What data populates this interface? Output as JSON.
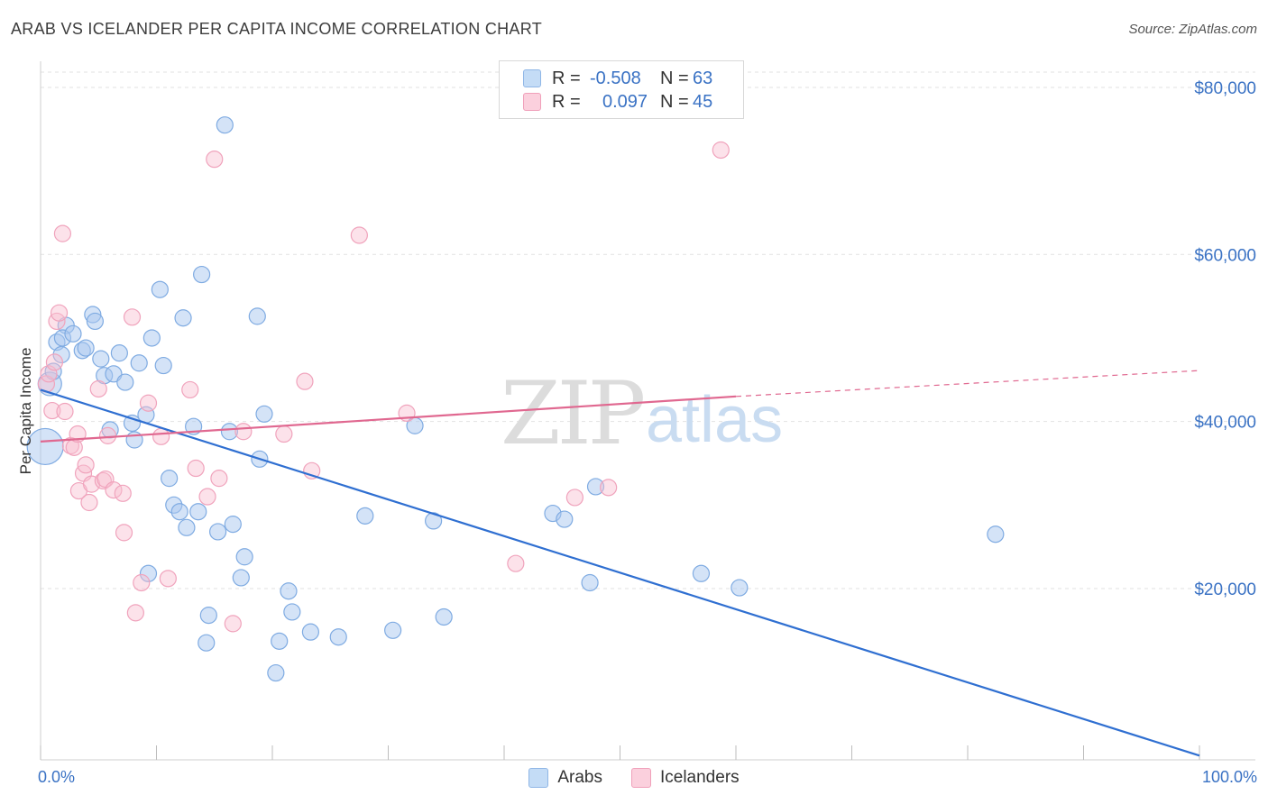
{
  "title": "ARAB VS ICELANDER PER CAPITA INCOME CORRELATION CHART",
  "source": "Source: ZipAtlas.com",
  "legend": {
    "rows": [
      {
        "r_label": "R =",
        "r_value": "-0.508",
        "n_label": "N =",
        "n_value": "63",
        "color": "#a9c9ef"
      },
      {
        "r_label": "R =",
        "r_value": "0.097",
        "n_label": "N =",
        "n_value": "45",
        "color": "#f6b9cc"
      }
    ]
  },
  "bottom_legend": [
    {
      "label": "Arabs",
      "color": "#a9c9ef"
    },
    {
      "label": "Icelanders",
      "color": "#f6b9cc"
    }
  ],
  "watermark": {
    "zip": "ZIP",
    "atlas": "atlas"
  },
  "chart_data": {
    "type": "scatter",
    "xlabel": "",
    "ylabel": "Per Capita Income",
    "x_tick_labels": [
      "0.0%",
      "100.0%"
    ],
    "y_tick_labels": [
      "$20,000",
      "$40,000",
      "$60,000",
      "$80,000"
    ],
    "y_ticks": [
      20000,
      40000,
      60000,
      80000
    ],
    "xlim": [
      0,
      100
    ],
    "ylim": [
      0,
      82000
    ],
    "grid": true,
    "colors": {
      "arabs": "#6aa0e0",
      "arabs_line": "#2f6fd1",
      "icelanders": "#f09ab4",
      "icelanders_line": "#e06890",
      "tick_label": "#3a72c4"
    },
    "series": [
      {
        "name": "Arabs",
        "points": [
          [
            0.4,
            37000
          ],
          [
            0.8,
            44500
          ],
          [
            1.4,
            49500
          ],
          [
            1.8,
            48000
          ],
          [
            2.2,
            51500
          ],
          [
            1.9,
            50000
          ],
          [
            2.8,
            50500
          ],
          [
            3.6,
            48500
          ],
          [
            3.9,
            48800
          ],
          [
            4.5,
            52800
          ],
          [
            4.7,
            52000
          ],
          [
            5.2,
            47500
          ],
          [
            5.5,
            45500
          ],
          [
            6.3,
            45700
          ],
          [
            6.8,
            48200
          ],
          [
            7.3,
            44700
          ],
          [
            7.9,
            39800
          ],
          [
            8.1,
            37800
          ],
          [
            8.5,
            47000
          ],
          [
            9.1,
            40800
          ],
          [
            9.6,
            50000
          ],
          [
            10.3,
            55800
          ],
          [
            10.6,
            46700
          ],
          [
            11.1,
            33200
          ],
          [
            11.5,
            30000
          ],
          [
            12.0,
            29200
          ],
          [
            12.3,
            52400
          ],
          [
            12.6,
            27300
          ],
          [
            13.2,
            39400
          ],
          [
            13.6,
            29200
          ],
          [
            13.9,
            57600
          ],
          [
            14.3,
            13500
          ],
          [
            14.5,
            16800
          ],
          [
            15.3,
            26800
          ],
          [
            15.9,
            75500
          ],
          [
            16.3,
            38800
          ],
          [
            16.6,
            27700
          ],
          [
            17.3,
            21300
          ],
          [
            17.6,
            23800
          ],
          [
            18.7,
            52600
          ],
          [
            18.9,
            35500
          ],
          [
            19.3,
            40900
          ],
          [
            20.6,
            13700
          ],
          [
            20.3,
            9900
          ],
          [
            21.4,
            19700
          ],
          [
            21.7,
            17200
          ],
          [
            23.3,
            14800
          ],
          [
            25.7,
            14200
          ],
          [
            28.0,
            28700
          ],
          [
            30.4,
            15000
          ],
          [
            32.3,
            39500
          ],
          [
            33.9,
            28100
          ],
          [
            34.8,
            16600
          ],
          [
            44.2,
            29000
          ],
          [
            45.2,
            28300
          ],
          [
            47.4,
            20700
          ],
          [
            47.9,
            32200
          ],
          [
            57.0,
            21800
          ],
          [
            60.3,
            20100
          ],
          [
            82.4,
            26500
          ],
          [
            9.3,
            21800
          ],
          [
            1.1,
            46000
          ],
          [
            6.0,
            39000
          ]
        ]
      },
      {
        "name": "Icelanders",
        "points": [
          [
            0.5,
            44500
          ],
          [
            0.7,
            45700
          ],
          [
            1.0,
            41300
          ],
          [
            1.2,
            47100
          ],
          [
            1.4,
            52000
          ],
          [
            1.6,
            53000
          ],
          [
            1.9,
            62500
          ],
          [
            2.1,
            41200
          ],
          [
            2.6,
            37100
          ],
          [
            2.9,
            36900
          ],
          [
            3.2,
            38500
          ],
          [
            3.3,
            31700
          ],
          [
            3.7,
            33800
          ],
          [
            3.9,
            34800
          ],
          [
            4.2,
            30300
          ],
          [
            4.4,
            32500
          ],
          [
            5.0,
            43900
          ],
          [
            5.4,
            32900
          ],
          [
            5.6,
            33100
          ],
          [
            5.8,
            38300
          ],
          [
            6.3,
            31800
          ],
          [
            7.1,
            31400
          ],
          [
            7.2,
            26700
          ],
          [
            7.9,
            52500
          ],
          [
            8.2,
            17100
          ],
          [
            8.7,
            20700
          ],
          [
            9.3,
            42200
          ],
          [
            10.4,
            38200
          ],
          [
            11.0,
            21200
          ],
          [
            12.9,
            43800
          ],
          [
            13.4,
            34400
          ],
          [
            14.4,
            31000
          ],
          [
            15.0,
            71400
          ],
          [
            15.4,
            33200
          ],
          [
            16.6,
            15800
          ],
          [
            17.5,
            38800
          ],
          [
            21.0,
            38500
          ],
          [
            22.8,
            44800
          ],
          [
            23.4,
            34100
          ],
          [
            27.5,
            62300
          ],
          [
            31.6,
            41000
          ],
          [
            41.0,
            23000
          ],
          [
            46.1,
            30900
          ],
          [
            49.0,
            32100
          ],
          [
            58.7,
            72500
          ]
        ]
      }
    ],
    "trend_lines": [
      {
        "name": "Arabs",
        "x": [
          0,
          100
        ],
        "y": [
          43800,
          0
        ]
      },
      {
        "name": "Icelanders",
        "x": [
          0,
          60
        ],
        "y": [
          37600,
          43000
        ],
        "dashed_to": [
          100,
          46100
        ]
      }
    ]
  }
}
